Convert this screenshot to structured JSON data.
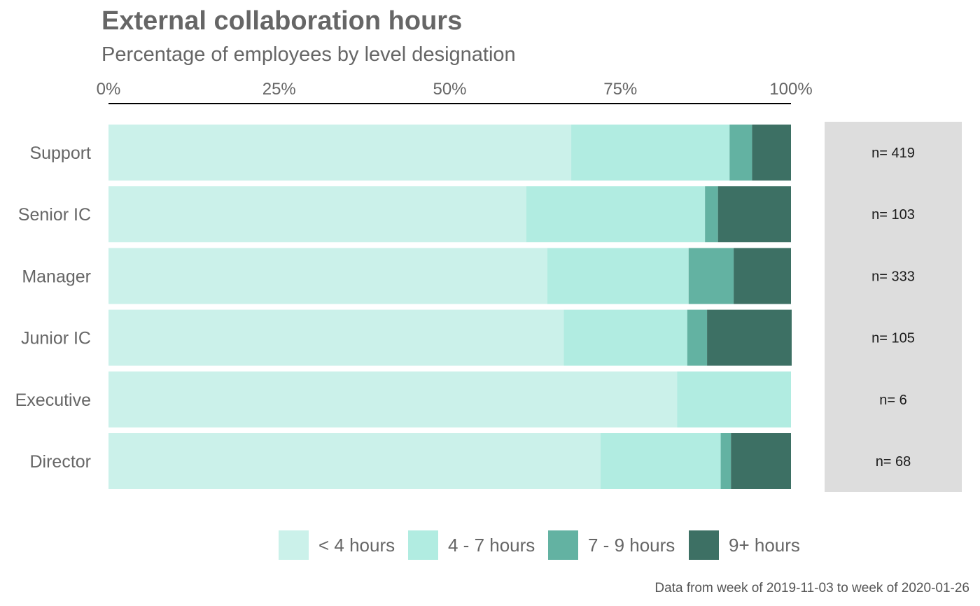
{
  "chart_data": {
    "type": "bar",
    "orientation": "horizontal",
    "stacked": "percent",
    "title": "External collaboration hours",
    "subtitle": "Percentage of employees by level designation",
    "x_ticks": [
      "0%",
      "25%",
      "50%",
      "75%",
      "100%"
    ],
    "xlim": [
      0,
      100
    ],
    "categories": [
      "Support",
      "Senior IC",
      "Manager",
      "Junior IC",
      "Executive",
      "Director"
    ],
    "series": [
      {
        "name": "< 4 hours",
        "color": "#CBF1EA",
        "values": [
          67.8,
          61.2,
          64.3,
          66.7,
          83.3,
          72.1
        ]
      },
      {
        "name": "4 - 7 hours",
        "color": "#B1ECE1",
        "values": [
          23.2,
          26.2,
          20.7,
          18.1,
          16.7,
          17.6
        ]
      },
      {
        "name": "7 - 9 hours",
        "color": "#63B2A2",
        "values": [
          3.3,
          1.9,
          6.6,
          2.9,
          0.0,
          1.5
        ]
      },
      {
        "name": "9+ hours",
        "color": "#3D7064",
        "values": [
          5.7,
          10.7,
          8.4,
          12.4,
          0.0,
          8.8
        ]
      }
    ],
    "n_labels": [
      "n= 419",
      "n= 103",
      "n= 333",
      "n= 105",
      "n= 6",
      "n= 68"
    ],
    "n_panel_color": "#DDDDDD",
    "legend_position": "bottom",
    "grid": false,
    "caption": "Data from week of 2019-11-03 to week of 2020-01-26"
  }
}
